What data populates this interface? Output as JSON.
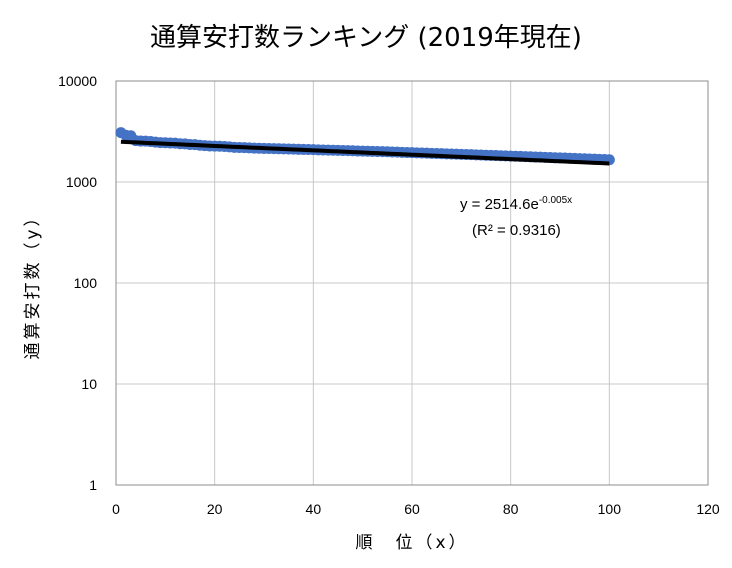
{
  "chart_data": {
    "type": "scatter",
    "title": "通算安打数ランキング (2019年現在)",
    "xlabel": "順　位（x）",
    "ylabel": "通算安打数（y）",
    "xlim": [
      0,
      120
    ],
    "ylim": [
      1,
      10000
    ],
    "y_scale": "log",
    "grid": true,
    "x_ticks": [
      "0",
      "20",
      "40",
      "60",
      "80",
      "100",
      "120"
    ],
    "y_ticks": [
      "1",
      "10",
      "100",
      "1000",
      "10000"
    ],
    "series": [
      {
        "marker_color": "#4472C4",
        "x": [
          1,
          2,
          3,
          4,
          5,
          6,
          7,
          8,
          9,
          10,
          11,
          12,
          13,
          14,
          15,
          16,
          17,
          18,
          19,
          20,
          21,
          22,
          23,
          24,
          25,
          26,
          27,
          28,
          29,
          30,
          31,
          32,
          33,
          34,
          35,
          36,
          37,
          38,
          39,
          40,
          41,
          42,
          43,
          44,
          45,
          46,
          47,
          48,
          49,
          50,
          51,
          52,
          53,
          54,
          55,
          56,
          57,
          58,
          59,
          60,
          61,
          62,
          63,
          64,
          65,
          66,
          67,
          68,
          69,
          70,
          71,
          72,
          73,
          74,
          75,
          76,
          77,
          78,
          79,
          80,
          81,
          82,
          83,
          84,
          85,
          86,
          87,
          88,
          89,
          90,
          91,
          92,
          93,
          94,
          95,
          96,
          97,
          98,
          99,
          100
        ],
        "y": [
          3085,
          2901,
          2867,
          2566,
          2543,
          2539,
          2521,
          2480,
          2452,
          2450,
          2432,
          2428,
          2393,
          2384,
          2351,
          2347,
          2314,
          2292,
          2271,
          2266,
          2258,
          2245,
          2225,
          2203,
          2198,
          2188,
          2176,
          2164,
          2158,
          2150,
          2147,
          2143,
          2133,
          2128,
          2122,
          2115,
          2107,
          2101,
          2097,
          2090,
          2081,
          2077,
          2071,
          2064,
          2058,
          2052,
          2046,
          2038,
          2030,
          2024,
          2016,
          2010,
          2004,
          1998,
          1991,
          1983,
          1975,
          1967,
          1960,
          1953,
          1945,
          1938,
          1930,
          1923,
          1915,
          1907,
          1900,
          1893,
          1886,
          1879,
          1872,
          1865,
          1857,
          1850,
          1842,
          1835,
          1828,
          1820,
          1813,
          1805,
          1798,
          1791,
          1783,
          1776,
          1769,
          1762,
          1755,
          1747,
          1740,
          1733,
          1726,
          1719,
          1712,
          1705,
          1698,
          1690,
          1683,
          1676,
          1669,
          1662
        ]
      }
    ],
    "trendline": {
      "type": "exponential",
      "color": "#000000",
      "coef_a": 2514.6,
      "coef_b": -0.005,
      "x_range": [
        1,
        100
      ]
    },
    "annotation": {
      "equation_main": "y = 2514.6e",
      "equation_exponent": "-0.005x",
      "r_squared": "(R² = 0.9316)"
    }
  }
}
